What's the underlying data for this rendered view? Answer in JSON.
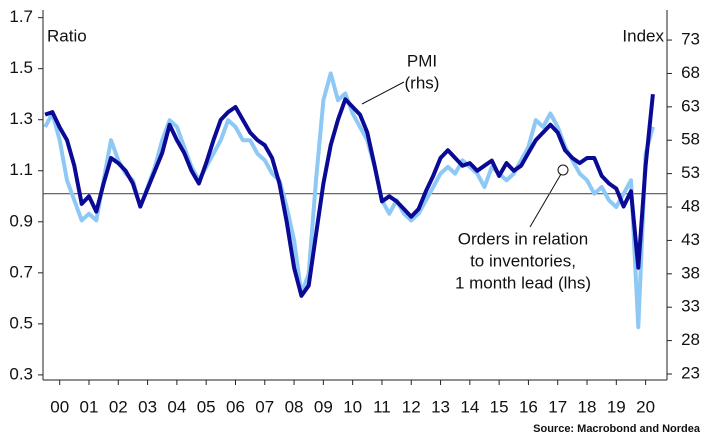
{
  "chart_data": {
    "type": "line",
    "y_label": "Ratio",
    "y2_label": "Index",
    "source": "Source: Macrobond and Nordea",
    "annotations": [
      {
        "lines": [
          "PMI",
          "(rhs)"
        ]
      },
      {
        "lines": [
          "Orders in relation",
          "to inventories,",
          "1 month lead (lhs)"
        ]
      }
    ],
    "xlim": [
      1999.93,
      2021.23
    ],
    "ylim": [
      0.28,
      1.73
    ],
    "y2lim": [
      22.1,
      77.5
    ],
    "yticks": [
      0.3,
      0.5,
      0.7,
      0.9,
      1.1,
      1.3,
      1.5,
      1.7
    ],
    "y2ticks": [
      23,
      28,
      33,
      38,
      43,
      48,
      53,
      58,
      63,
      68,
      73
    ],
    "xticks": [
      {
        "value": 2000.5,
        "label": "00"
      },
      {
        "value": 2001.5,
        "label": "01"
      },
      {
        "value": 2002.5,
        "label": "02"
      },
      {
        "value": 2003.5,
        "label": "03"
      },
      {
        "value": 2004.5,
        "label": "04"
      },
      {
        "value": 2005.5,
        "label": "05"
      },
      {
        "value": 2006.5,
        "label": "06"
      },
      {
        "value": 2007.5,
        "label": "07"
      },
      {
        "value": 2008.5,
        "label": "08"
      },
      {
        "value": 2009.5,
        "label": "09"
      },
      {
        "value": 2010.5,
        "label": "10"
      },
      {
        "value": 2011.5,
        "label": "11"
      },
      {
        "value": 2012.5,
        "label": "12"
      },
      {
        "value": 2013.5,
        "label": "13"
      },
      {
        "value": 2014.5,
        "label": "14"
      },
      {
        "value": 2015.5,
        "label": "15"
      },
      {
        "value": 2016.5,
        "label": "16"
      },
      {
        "value": 2017.5,
        "label": "17"
      },
      {
        "value": 2018.5,
        "label": "18"
      },
      {
        "value": 2019.5,
        "label": "19"
      },
      {
        "value": 2020.5,
        "label": "20"
      }
    ],
    "reference_line": {
      "value": 50,
      "axis": "y2",
      "color": "#555555"
    },
    "x": [
      2000,
      2000.25,
      2000.5,
      2000.75,
      2001,
      2001.25,
      2001.5,
      2001.75,
      2002,
      2002.25,
      2002.5,
      2002.75,
      2003,
      2003.25,
      2003.5,
      2003.75,
      2004,
      2004.25,
      2004.5,
      2004.75,
      2005,
      2005.25,
      2005.5,
      2005.75,
      2006,
      2006.25,
      2006.5,
      2006.75,
      2007,
      2007.25,
      2007.5,
      2007.75,
      2008,
      2008.25,
      2008.5,
      2008.75,
      2009,
      2009.25,
      2009.5,
      2009.75,
      2010,
      2010.25,
      2010.5,
      2010.75,
      2011,
      2011.25,
      2011.5,
      2011.75,
      2012,
      2012.25,
      2012.5,
      2012.75,
      2013,
      2013.25,
      2013.5,
      2013.75,
      2014,
      2014.25,
      2014.5,
      2014.75,
      2015,
      2015.25,
      2015.5,
      2015.75,
      2016,
      2016.25,
      2016.5,
      2016.75,
      2017,
      2017.25,
      2017.5,
      2017.75,
      2018,
      2018.25,
      2018.5,
      2018.75,
      2019,
      2019.25,
      2019.5,
      2019.75,
      2020,
      2020.25,
      2020.5,
      2020.75
    ],
    "series": [
      {
        "name": "PMI",
        "axis": "y2",
        "color": "#8ec8f5",
        "width": 4,
        "values": [
          60,
          62,
          58,
          52,
          49,
          46,
          47,
          46,
          52,
          58,
          55,
          53,
          52,
          48,
          51,
          54,
          58,
          61,
          60,
          57,
          54,
          52,
          54,
          56,
          58,
          61,
          60,
          58,
          58,
          56,
          55,
          53,
          52,
          48,
          43,
          35,
          38,
          52,
          64,
          68,
          64,
          65,
          62,
          60,
          58,
          54,
          49,
          47,
          49,
          47,
          46,
          47,
          49,
          51,
          53,
          54,
          53,
          55,
          54,
          53,
          51,
          54,
          53,
          52,
          53,
          55,
          57,
          61,
          60,
          62,
          60,
          57,
          55,
          53,
          52,
          50,
          51,
          49,
          48,
          50,
          52,
          30,
          56,
          60
        ]
      },
      {
        "name": "Orders in relation to inventories",
        "axis": "y",
        "color": "#0a0a96",
        "width": 4,
        "values": [
          1.32,
          1.33,
          1.27,
          1.22,
          1.12,
          0.97,
          1.0,
          0.94,
          1.05,
          1.15,
          1.13,
          1.1,
          1.05,
          0.96,
          1.03,
          1.1,
          1.17,
          1.28,
          1.22,
          1.17,
          1.1,
          1.05,
          1.13,
          1.22,
          1.3,
          1.33,
          1.35,
          1.3,
          1.25,
          1.22,
          1.2,
          1.15,
          1.05,
          0.9,
          0.72,
          0.61,
          0.65,
          0.85,
          1.05,
          1.2,
          1.3,
          1.38,
          1.35,
          1.32,
          1.25,
          1.12,
          0.98,
          1.0,
          0.98,
          0.95,
          0.92,
          0.95,
          1.02,
          1.08,
          1.15,
          1.18,
          1.15,
          1.12,
          1.13,
          1.1,
          1.12,
          1.14,
          1.08,
          1.13,
          1.1,
          1.12,
          1.17,
          1.22,
          1.25,
          1.28,
          1.25,
          1.18,
          1.15,
          1.13,
          1.15,
          1.15,
          1.08,
          1.05,
          1.03,
          0.96,
          1.02,
          0.72,
          1.12,
          1.4
        ]
      }
    ]
  }
}
